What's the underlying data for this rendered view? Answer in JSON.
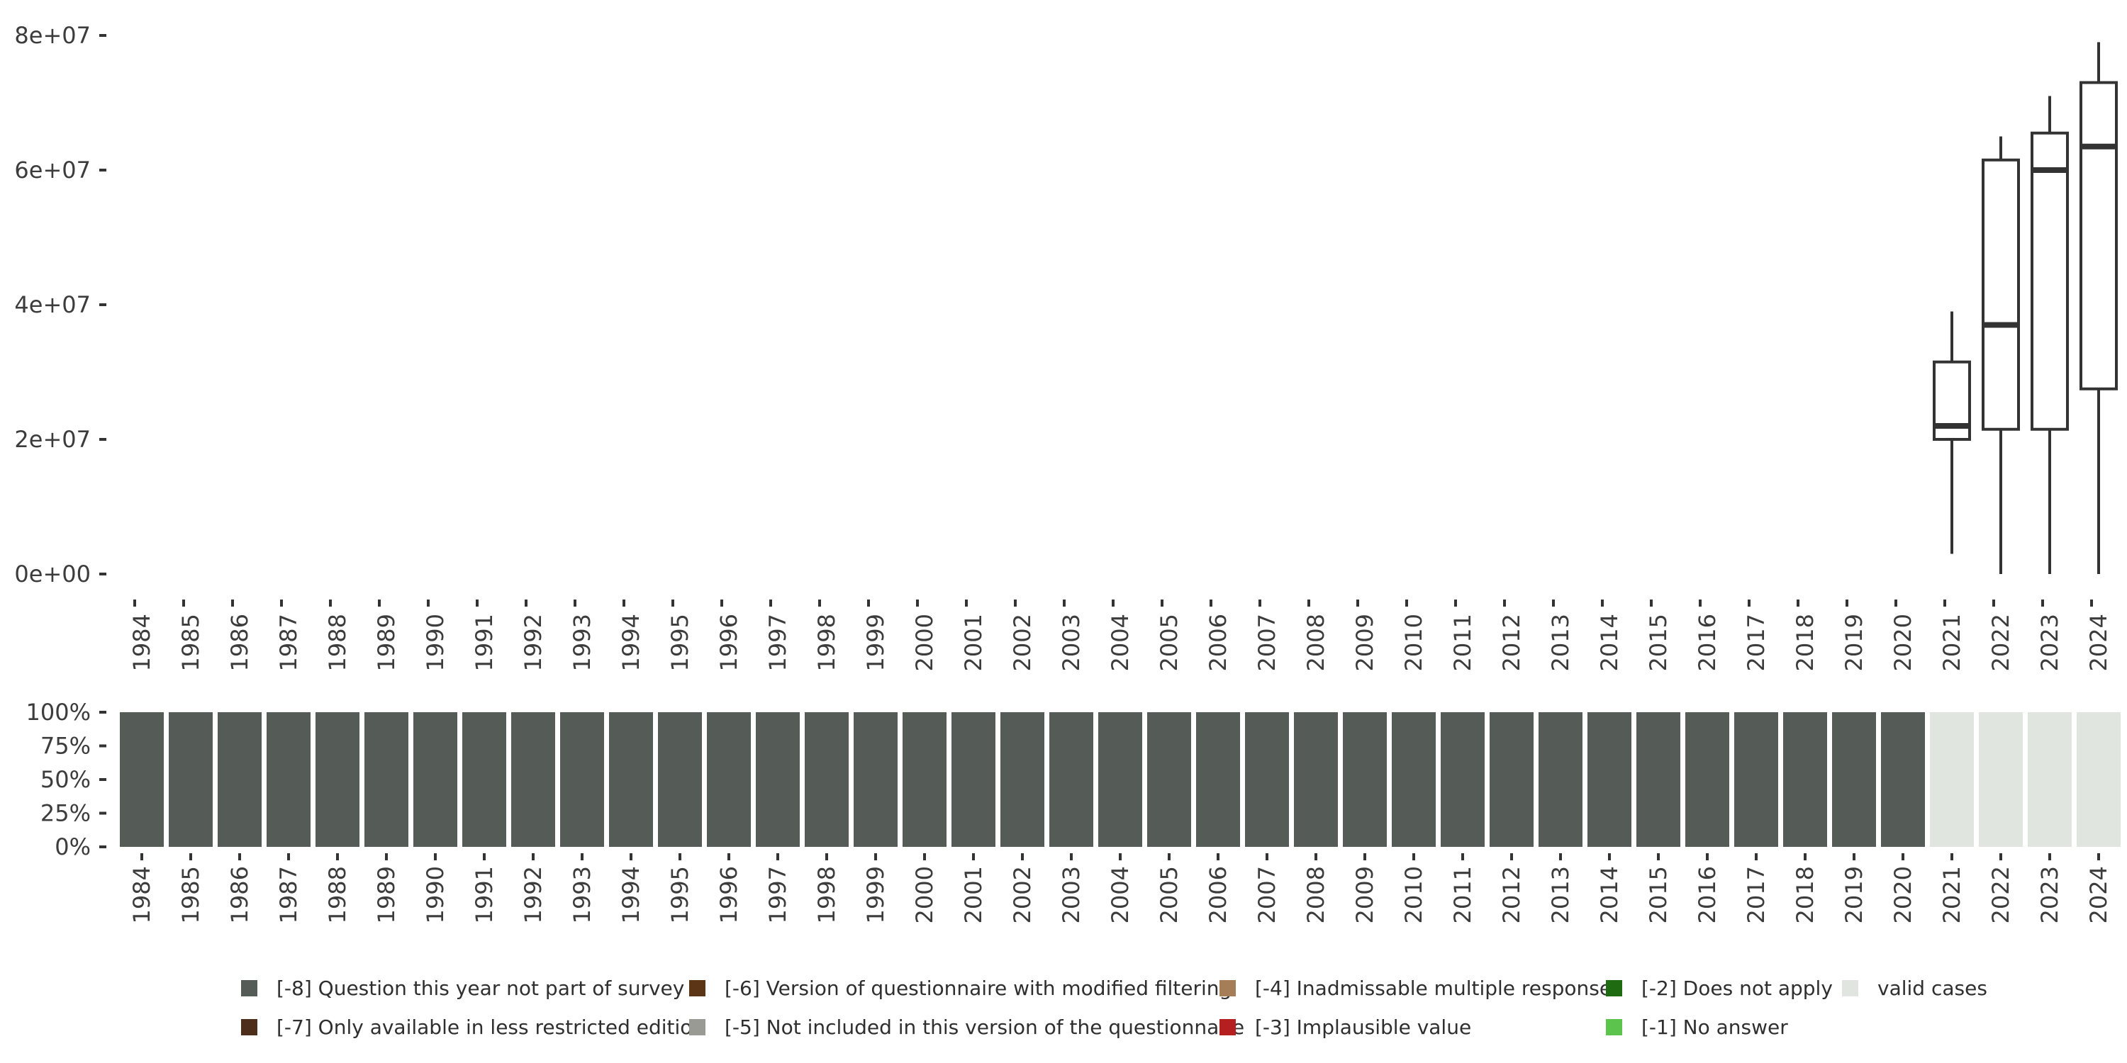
{
  "chart_data": [
    {
      "type": "box",
      "y_ticks": [
        "0e+00",
        "2e+07",
        "4e+07",
        "6e+07",
        "8e+07"
      ],
      "ylim": [
        0,
        80000000
      ],
      "categories": [
        "1984",
        "1985",
        "1986",
        "1987",
        "1988",
        "1989",
        "1990",
        "1991",
        "1992",
        "1993",
        "1994",
        "1995",
        "1996",
        "1997",
        "1998",
        "1999",
        "2000",
        "2001",
        "2002",
        "2003",
        "2004",
        "2005",
        "2006",
        "2007",
        "2008",
        "2009",
        "2010",
        "2011",
        "2012",
        "2013",
        "2014",
        "2015",
        "2016",
        "2017",
        "2018",
        "2019",
        "2020",
        "2021",
        "2022",
        "2023",
        "2024"
      ],
      "boxes": [
        {
          "year": "2021",
          "min": 3000000,
          "q1": 20000000,
          "median": 22000000,
          "q3": 31500000,
          "max": 39000000
        },
        {
          "year": "2022",
          "min": 0,
          "q1": 21500000,
          "median": 37000000,
          "q3": 61500000,
          "max": 65000000
        },
        {
          "year": "2023",
          "min": 0,
          "q1": 21500000,
          "median": 60000000,
          "q3": 65500000,
          "max": 71000000
        },
        {
          "year": "2024",
          "min": 0,
          "q1": 27500000,
          "median": 63500000,
          "q3": 73000000,
          "max": 79000000
        }
      ]
    },
    {
      "type": "bar",
      "stacked": true,
      "y_ticks": [
        "0%",
        "25%",
        "50%",
        "75%",
        "100%"
      ],
      "ylim": [
        0,
        1
      ],
      "categories": [
        "1984",
        "1985",
        "1986",
        "1987",
        "1988",
        "1989",
        "1990",
        "1991",
        "1992",
        "1993",
        "1994",
        "1995",
        "1996",
        "1997",
        "1998",
        "1999",
        "2000",
        "2001",
        "2002",
        "2003",
        "2004",
        "2005",
        "2006",
        "2007",
        "2008",
        "2009",
        "2010",
        "2011",
        "2012",
        "2013",
        "2014",
        "2015",
        "2016",
        "2017",
        "2018",
        "2019",
        "2020",
        "2021",
        "2022",
        "2023",
        "2024"
      ],
      "series": [
        {
          "name": "[-8] Question this year not part of survey",
          "color": "#555b57",
          "values": [
            1,
            1,
            1,
            1,
            1,
            1,
            1,
            1,
            1,
            1,
            1,
            1,
            1,
            1,
            1,
            1,
            1,
            1,
            1,
            1,
            1,
            1,
            1,
            1,
            1,
            1,
            1,
            1,
            1,
            1,
            1,
            1,
            1,
            1,
            1,
            1,
            1,
            0,
            0,
            0,
            0
          ]
        },
        {
          "name": "valid cases",
          "color": "#e1e5e0",
          "values": [
            0,
            0,
            0,
            0,
            0,
            0,
            0,
            0,
            0,
            0,
            0,
            0,
            0,
            0,
            0,
            0,
            0,
            0,
            0,
            0,
            0,
            0,
            0,
            0,
            0,
            0,
            0,
            0,
            0,
            0,
            0,
            0,
            0,
            0,
            0,
            0,
            0,
            1,
            1,
            1,
            1
          ]
        }
      ],
      "legend": [
        {
          "label": "[-8] Question this year not part of survey",
          "color": "#555b57"
        },
        {
          "label": "[-7] Only available in less restricted edition",
          "color": "#4d2e1a"
        },
        {
          "label": "[-6] Version of questionnaire with modified filtering",
          "color": "#5b3516"
        },
        {
          "label": "[-5] Not included in this version of the questionnaire",
          "color": "#9a9a94"
        },
        {
          "label": "[-4] Inadmissable multiple response",
          "color": "#a57d56"
        },
        {
          "label": "[-3] Implausible value",
          "color": "#b61f1f"
        },
        {
          "label": "[-2] Does not apply",
          "color": "#1e6b12"
        },
        {
          "label": "[-1] No answer",
          "color": "#5cc34c"
        },
        {
          "label": "valid cases",
          "color": "#e1e5e0"
        }
      ]
    }
  ]
}
